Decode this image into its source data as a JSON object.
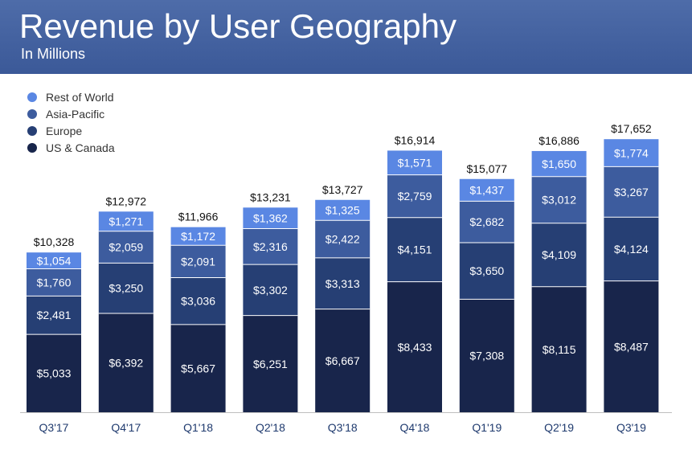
{
  "title": "Revenue by User Geography",
  "subtitle": "In Millions",
  "chart_data": {
    "type": "bar",
    "stacked": true,
    "categories": [
      "Q3'17",
      "Q4'17",
      "Q1'18",
      "Q2'18",
      "Q3'18",
      "Q4'18",
      "Q1'19",
      "Q2'19",
      "Q3'19"
    ],
    "totals": [
      10328,
      12972,
      11966,
      13231,
      13727,
      16914,
      15077,
      16886,
      17652
    ],
    "total_labels": [
      "$10,328",
      "$12,972",
      "$11,966",
      "$13,231",
      "$13,727",
      "$16,914",
      "$15,077",
      "$16,886",
      "$17,652"
    ],
    "series": [
      {
        "name": "US & Canada",
        "color": "#18254b",
        "values": [
          5033,
          6392,
          5667,
          6251,
          6667,
          8433,
          7308,
          8115,
          8487
        ],
        "labels": [
          "$5,033",
          "$6,392",
          "$5,667",
          "$6,251",
          "$6,667",
          "$8,433",
          "$7,308",
          "$8,115",
          "$8,487"
        ]
      },
      {
        "name": "Europe",
        "color": "#263f74",
        "values": [
          2481,
          3250,
          3036,
          3302,
          3313,
          4151,
          3650,
          4109,
          4124
        ],
        "labels": [
          "$2,481",
          "$3,250",
          "$3,036",
          "$3,302",
          "$3,313",
          "$4,151",
          "$3,650",
          "$4,109",
          "$4,124"
        ]
      },
      {
        "name": "Asia-Pacific",
        "color": "#3d5c9e",
        "values": [
          1760,
          2059,
          2091,
          2316,
          2422,
          2759,
          2682,
          3012,
          3267
        ],
        "labels": [
          "$1,760",
          "$2,059",
          "$2,091",
          "$2,316",
          "$2,422",
          "$2,759",
          "$2,682",
          "$3,012",
          "$3,267"
        ]
      },
      {
        "name": "Rest of World",
        "color": "#5a87e3",
        "values": [
          1054,
          1271,
          1172,
          1362,
          1325,
          1571,
          1437,
          1650,
          1774
        ],
        "labels": [
          "$1,054",
          "$1,271",
          "$1,172",
          "$1,362",
          "$1,325",
          "$1,571",
          "$1,437",
          "$1,650",
          "$1,774"
        ]
      }
    ],
    "legend": [
      "Rest of World",
      "Asia-Pacific",
      "Europe",
      "US & Canada"
    ],
    "legend_position": "top-left"
  }
}
